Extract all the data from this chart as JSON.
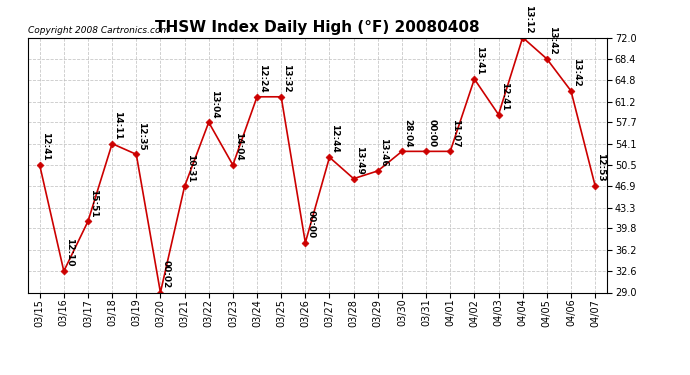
{
  "title": "THSW Index Daily High (°F) 20080408",
  "copyright": "Copyright 2008 Cartronics.com",
  "x_labels": [
    "03/15",
    "03/16",
    "03/17",
    "03/18",
    "03/19",
    "03/20",
    "03/21",
    "03/22",
    "03/23",
    "03/24",
    "03/25",
    "03/26",
    "03/27",
    "03/28",
    "03/29",
    "03/30",
    "03/31",
    "04/01",
    "04/02",
    "04/03",
    "04/04",
    "04/05",
    "04/06",
    "04/07"
  ],
  "y_values": [
    50.5,
    32.6,
    41.0,
    54.1,
    52.3,
    29.0,
    46.9,
    57.7,
    50.5,
    62.0,
    62.0,
    37.4,
    51.8,
    48.2,
    49.5,
    52.8,
    52.8,
    52.8,
    65.0,
    59.0,
    72.0,
    68.4,
    63.0,
    47.0
  ],
  "point_labels": [
    "12:41",
    "12:10",
    "15:51",
    "14:11",
    "12:35",
    "00:02",
    "10:31",
    "13:04",
    "14:04",
    "12:24",
    "13:32",
    "00:00",
    "12:44",
    "13:49",
    "13:46",
    "28:04",
    "00:00",
    "11:07",
    "13:41",
    "12:41",
    "13:12",
    "13:42",
    "13:42",
    "12:53"
  ],
  "ylim": [
    29.0,
    72.0
  ],
  "yticks": [
    29.0,
    32.6,
    36.2,
    39.8,
    43.3,
    46.9,
    50.5,
    54.1,
    57.7,
    61.2,
    64.8,
    68.4,
    72.0
  ],
  "line_color": "#cc0000",
  "marker_color": "#cc0000",
  "bg_color": "#ffffff",
  "plot_bg_color": "#ffffff",
  "grid_color": "#bbbbbb",
  "title_fontsize": 11,
  "label_fontsize": 6.5,
  "tick_fontsize": 7,
  "copyright_fontsize": 6.5
}
